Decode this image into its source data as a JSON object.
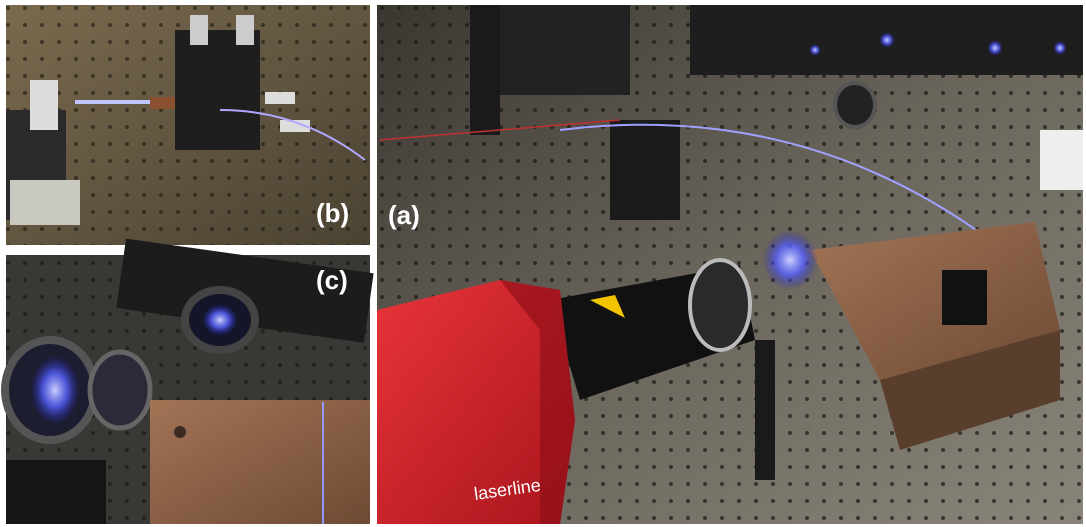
{
  "panels": [
    {
      "label": "(a)",
      "brand": "laserline"
    },
    {
      "label": "(b)"
    },
    {
      "label": "(c)"
    }
  ]
}
